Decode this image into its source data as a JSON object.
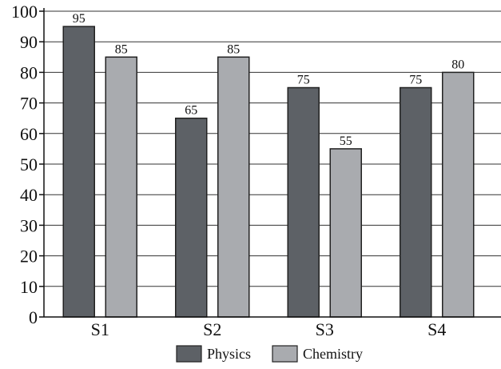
{
  "colors": {
    "physics": "#5d6166",
    "chemistry": "#a9abaf",
    "grid": "#333333",
    "background": "#ffffff"
  },
  "chart_data": {
    "type": "bar",
    "categories": [
      "S1",
      "S2",
      "S3",
      "S4"
    ],
    "series": [
      {
        "name": "Physics",
        "values": [
          95,
          65,
          75,
          75
        ]
      },
      {
        "name": "Chemistry",
        "values": [
          85,
          85,
          55,
          80
        ]
      }
    ],
    "data_labels": [
      [
        "95",
        "65",
        "75",
        "75"
      ],
      [
        "85",
        "85",
        "55",
        "80"
      ]
    ],
    "yticks": [
      0,
      10,
      20,
      30,
      40,
      50,
      60,
      70,
      80,
      90,
      100
    ],
    "ylim": [
      0,
      100
    ],
    "grid": true,
    "legend_position": "bottom-center",
    "title": "",
    "xlabel": "",
    "ylabel": ""
  }
}
